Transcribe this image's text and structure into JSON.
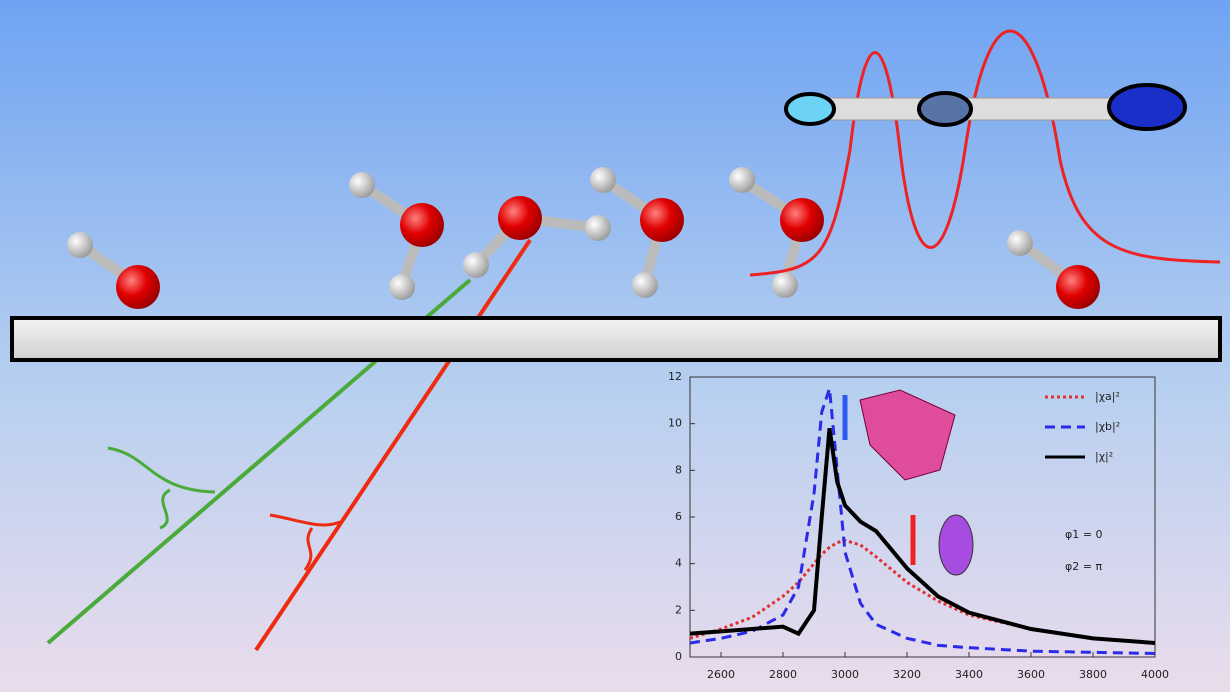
{
  "chart_data": {
    "type": "line",
    "x": [
      2500,
      2600,
      2700,
      2800,
      2850,
      2900,
      2925,
      2950,
      2975,
      3000,
      3050,
      3100,
      3200,
      3300,
      3400,
      3600,
      3800,
      4000
    ],
    "series": [
      {
        "name": "|χa|²",
        "color": "#e03030",
        "dash": "3,3",
        "values": [
          0.8,
          1.2,
          1.7,
          2.6,
          3.2,
          4,
          4.4,
          4.7,
          4.9,
          5,
          4.8,
          4.3,
          3.2,
          2.4,
          1.8,
          1.2,
          0.8,
          0.6
        ]
      },
      {
        "name": "|χb|²",
        "color": "#2a2ae8",
        "dash": "10,6",
        "values": [
          0.6,
          0.8,
          1.1,
          1.8,
          3,
          7,
          10.5,
          11.5,
          8,
          4.5,
          2.3,
          1.4,
          0.8,
          0.5,
          0.4,
          0.25,
          0.2,
          0.15
        ]
      },
      {
        "name": "|χ|²",
        "color": "#000000",
        "dash": "",
        "values": [
          1.0,
          1.1,
          1.2,
          1.3,
          1.0,
          2,
          6,
          9.8,
          7.5,
          6.5,
          5.8,
          5.4,
          3.8,
          2.6,
          1.9,
          1.2,
          0.8,
          0.6
        ]
      }
    ],
    "xlim": [
      2500,
      4000
    ],
    "xticks": [
      2600,
      2800,
      3000,
      3200,
      3400,
      3600,
      3800,
      4000
    ],
    "ylim": [
      0,
      12
    ],
    "yticks": [
      0,
      2,
      4,
      6,
      8,
      10,
      12
    ],
    "annotations": [
      "φ1 = 0",
      "φ2 = π"
    ]
  }
}
